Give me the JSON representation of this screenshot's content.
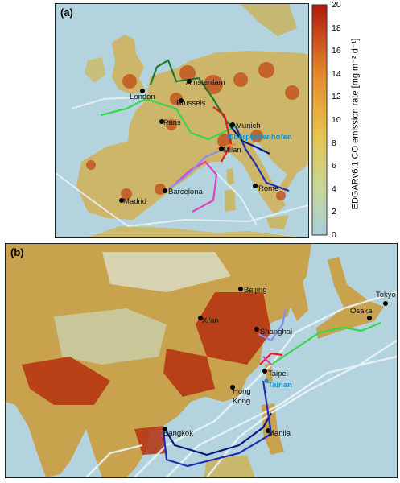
{
  "panel_a": {
    "label": "(a)",
    "cities": [
      "Amsterdam",
      "London",
      "Brussels",
      "Paris",
      "Munich",
      "Oberpfaffenhofen",
      "Milan",
      "Barcelona",
      "Madrid",
      "Rome"
    ],
    "highlight_city": "Oberpfaffenhofen"
  },
  "panel_b": {
    "label": "(b)",
    "cities": [
      "Beijing",
      "Xi'an",
      "Shanghai",
      "Osaka",
      "Tokyo",
      "Taipei",
      "Hong",
      "Kong",
      "Bangkok",
      "Manila"
    ],
    "highlight_city": "Tainan"
  },
  "colorbar": {
    "title": "EDGARv6.1 CO emission rate [mg m⁻² d⁻¹]",
    "ticks": [
      "20",
      "18",
      "16",
      "14",
      "12",
      "10",
      "8",
      "6",
      "4",
      "2",
      "0"
    ],
    "min": 0,
    "max": 20,
    "colors": {
      "low": "#a9cfdc",
      "mid": "#e8c24a",
      "high": "#b2180f"
    }
  },
  "route_colors": {
    "dark_green": "#1f7a2e",
    "green": "#33d94a",
    "red": "#e11c1c",
    "blue": "#1f2fb4",
    "navy": "#0a1a7a",
    "magenta": "#e43cc4",
    "lavender": "#8c8cf0",
    "orange": "#f08a24"
  }
}
